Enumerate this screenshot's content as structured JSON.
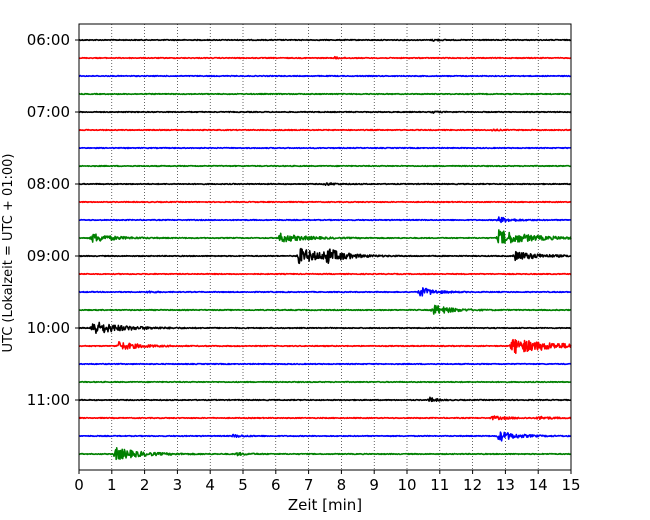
{
  "chart_data": {
    "type": "line",
    "title": "",
    "xlabel": "Zeit  [min]",
    "ylabel": "UTC (Lokalzeit = UTC + 01:00)",
    "xlim": [
      0,
      15
    ],
    "x_ticks": [
      0,
      1,
      2,
      3,
      4,
      5,
      6,
      7,
      8,
      9,
      10,
      11,
      12,
      13,
      14,
      15
    ],
    "y_tick_labels": [
      "06:00",
      "07:00",
      "08:00",
      "09:00",
      "10:00",
      "11:00"
    ],
    "grid": "vertical dotted",
    "trace_interval_min": 15,
    "trace_colors": [
      "#000000",
      "#ff0000",
      "#0000ff",
      "#008000"
    ],
    "traces": [
      {
        "start": "06:00",
        "color": "#000000",
        "events": [
          {
            "t": 10.8,
            "amp": 0.25,
            "dur": 0.2
          }
        ]
      },
      {
        "start": "06:15",
        "color": "#ff0000",
        "events": [
          {
            "t": 7.8,
            "amp": 0.25,
            "dur": 0.2
          }
        ]
      },
      {
        "start": "06:30",
        "color": "#0000ff",
        "events": []
      },
      {
        "start": "06:45",
        "color": "#008000",
        "events": []
      },
      {
        "start": "07:00",
        "color": "#000000",
        "events": [
          {
            "t": 10.8,
            "amp": 0.25,
            "dur": 0.2
          }
        ]
      },
      {
        "start": "07:15",
        "color": "#ff0000",
        "events": [
          {
            "t": 12.6,
            "amp": 0.25,
            "dur": 0.2
          }
        ]
      },
      {
        "start": "07:30",
        "color": "#0000ff",
        "events": []
      },
      {
        "start": "07:45",
        "color": "#008000",
        "events": []
      },
      {
        "start": "08:00",
        "color": "#000000",
        "events": [
          {
            "t": 7.5,
            "amp": 0.4,
            "dur": 0.3
          }
        ]
      },
      {
        "start": "08:15",
        "color": "#ff0000",
        "events": []
      },
      {
        "start": "08:30",
        "color": "#0000ff",
        "events": [
          {
            "t": 12.8,
            "amp": 0.8,
            "dur": 0.4
          }
        ]
      },
      {
        "start": "08:45",
        "color": "#008000",
        "events": [
          {
            "t": 0.4,
            "amp": 1.3,
            "dur": 0.6
          },
          {
            "t": 6.1,
            "amp": 1.3,
            "dur": 0.7
          },
          {
            "t": 12.8,
            "amp": 2.2,
            "dur": 0.9
          }
        ]
      },
      {
        "start": "09:00",
        "color": "#000000",
        "events": [
          {
            "t": 6.7,
            "amp": 2.3,
            "dur": 0.7
          },
          {
            "t": 7.5,
            "amp": 1.8,
            "dur": 0.5
          },
          {
            "t": 13.3,
            "amp": 1.3,
            "dur": 0.7
          }
        ]
      },
      {
        "start": "09:15",
        "color": "#ff0000",
        "events": []
      },
      {
        "start": "09:30",
        "color": "#0000ff",
        "events": [
          {
            "t": 10.4,
            "amp": 1.4,
            "dur": 0.4
          },
          {
            "t": 2.1,
            "amp": 0.3,
            "dur": 0.2
          }
        ]
      },
      {
        "start": "09:45",
        "color": "#008000",
        "events": [
          {
            "t": 10.8,
            "amp": 1.5,
            "dur": 0.5
          }
        ]
      },
      {
        "start": "10:00",
        "color": "#000000",
        "events": [
          {
            "t": 0.4,
            "amp": 2.0,
            "dur": 0.8
          }
        ]
      },
      {
        "start": "10:15",
        "color": "#ff0000",
        "events": [
          {
            "t": 1.2,
            "amp": 1.2,
            "dur": 0.6
          },
          {
            "t": 13.2,
            "amp": 2.2,
            "dur": 1.2
          }
        ]
      },
      {
        "start": "10:30",
        "color": "#0000ff",
        "events": []
      },
      {
        "start": "10:45",
        "color": "#008000",
        "events": []
      },
      {
        "start": "11:00",
        "color": "#000000",
        "events": [
          {
            "t": 10.7,
            "amp": 0.7,
            "dur": 0.2
          }
        ]
      },
      {
        "start": "11:15",
        "color": "#ff0000",
        "events": [
          {
            "t": 12.6,
            "amp": 0.5,
            "dur": 0.5
          },
          {
            "t": 14.0,
            "amp": 0.4,
            "dur": 0.4
          }
        ]
      },
      {
        "start": "11:30",
        "color": "#0000ff",
        "events": [
          {
            "t": 12.8,
            "amp": 1.5,
            "dur": 0.5
          },
          {
            "t": 4.7,
            "amp": 0.4,
            "dur": 0.3
          }
        ]
      },
      {
        "start": "11:45",
        "color": "#008000",
        "events": [
          {
            "t": 1.1,
            "amp": 1.8,
            "dur": 0.7
          },
          {
            "t": 4.8,
            "amp": 0.4,
            "dur": 0.3
          }
        ]
      }
    ]
  }
}
